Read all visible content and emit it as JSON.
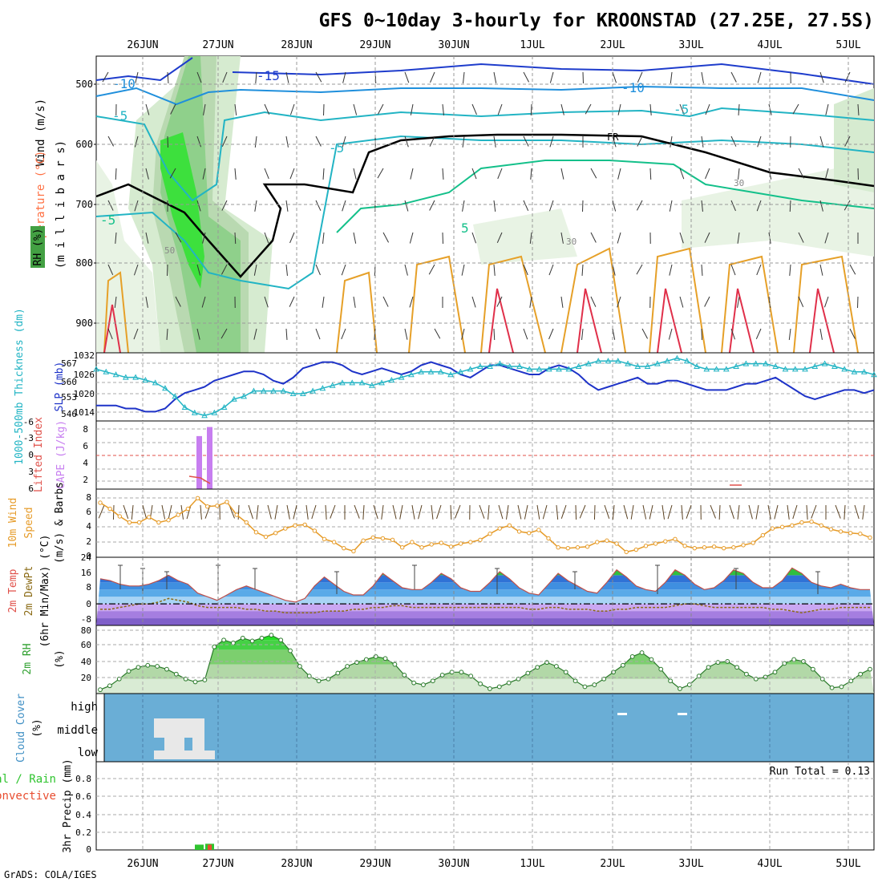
{
  "title": "GFS 0~10day 3-hourly for KROONSTAD (27.25E, 27.5S)",
  "footer": "GrADS: COLA/IGES",
  "dates": [
    "26JUN",
    "27JUN",
    "28JUN",
    "29JUN",
    "30JUN",
    "1JUL",
    "2JUL",
    "3JUL",
    "4JUL",
    "5JUL"
  ],
  "colors": {
    "sst_line": "#1e33c8",
    "thick_line": "#22b4c4",
    "cape_bar": "#c77ef0",
    "li_line": "#e0504a",
    "wind_line": "#e69b28",
    "rh_fill": "#43a043",
    "cloud_bg": "#6aaed6",
    "cloud_fill": "#e8e8e8",
    "precip_total": "#2fc42f",
    "precip_conv": "#e84d30",
    "temp_line": "#8a6a14"
  },
  "panels": {
    "upper_air": {
      "ylabel_wind": "Wind (m/s)",
      "ylabel_temp": "Temperature (°C)",
      "ylabel_rh": "RH (%)",
      "ylabel_mb": "(m i l l i b a r s)",
      "y_ticks": [
        "500",
        "600",
        "700",
        "800",
        "900"
      ],
      "contour_labels": [
        "-15",
        "-10",
        "-10",
        "-5",
        "-5",
        "-5",
        "-5",
        "5",
        "FR",
        "30",
        "30",
        "50"
      ]
    },
    "slp_thick": {
      "ylabel_thick": "1000-500mb Thickness (dm)",
      "ylabel_slp": "SLP (mb)",
      "left_ticks": [
        "567",
        "560",
        "553",
        "546"
      ],
      "right_ticks": [
        "1032",
        "1026",
        "1020",
        "1014"
      ]
    },
    "cape_li": {
      "ylabel_li": "Lifted Index",
      "ylabel_cape": "CAPE (J/kg)",
      "left_ticks": [
        "-6",
        "-3",
        "0",
        "3",
        "6"
      ],
      "right_ticks": [
        "8",
        "6",
        "4",
        "2"
      ]
    },
    "wind10m": {
      "ylabel1": "10m Wind",
      "ylabel2": "Speed",
      "ylabel3": "(m/s) & Barbs",
      "ticks": [
        "8",
        "6",
        "4",
        "2",
        "0"
      ]
    },
    "temp2m": {
      "ylabel1": "2m Temp",
      "ylabel2": "2m DewPt",
      "ylabel3": "(6hr Min/Max) (°C)",
      "ticks": [
        "24",
        "16",
        "8",
        "0",
        "-8"
      ]
    },
    "rh2m": {
      "ylabel1": "2m RH",
      "ylabel2": "(%)",
      "ticks": [
        "80",
        "60",
        "40",
        "20"
      ]
    },
    "cloud": {
      "ylabel1": "Cloud Cover",
      "ylabel2": "(%)",
      "levels": [
        "high",
        "middle",
        "low"
      ]
    },
    "precip": {
      "ylabel1": "tal / Rain",
      "ylabel2": "Convective",
      "ylabel3": "3hr Precip (mm)",
      "ticks": [
        "0.8",
        "0.6",
        "0.4",
        "0.2",
        "0"
      ],
      "run_total": "Run Total = 0.13"
    }
  },
  "chart_data": [
    {
      "type": "line",
      "title": "1000-500mb Thickness (dm) / SLP (mb)",
      "x": "3-hourly steps from 25JUN 12Z to 5JUL 06Z",
      "series": [
        {
          "name": "SLP (mb)",
          "values": [
            1016,
            1016,
            1016,
            1015,
            1015,
            1014,
            1014,
            1015,
            1018,
            1020,
            1021,
            1022,
            1024,
            1025,
            1026,
            1027,
            1027,
            1026,
            1024,
            1023,
            1025,
            1028,
            1029,
            1030,
            1030,
            1029,
            1027,
            1026,
            1027,
            1028,
            1027,
            1026,
            1027,
            1029,
            1030,
            1029,
            1028,
            1026,
            1025,
            1027,
            1029,
            1029,
            1028,
            1027,
            1026,
            1026,
            1028,
            1029,
            1028,
            1026,
            1023,
            1021,
            1022,
            1023,
            1024,
            1025,
            1023,
            1023,
            1024,
            1024,
            1023,
            1022,
            1021,
            1021,
            1021,
            1022,
            1023,
            1023,
            1024,
            1025,
            1023,
            1021,
            1019,
            1018,
            1019,
            1020,
            1021,
            1021,
            1020,
            1021
          ]
        },
        {
          "name": "1000-500mb Thickness (dm)",
          "values": [
            563,
            562,
            561,
            560,
            560,
            559,
            558,
            556,
            553,
            549,
            547,
            546,
            547,
            549,
            552,
            553,
            555,
            555,
            555,
            555,
            554,
            554,
            555,
            556,
            557,
            558,
            558,
            558,
            557,
            558,
            559,
            560,
            561,
            562,
            562,
            562,
            561,
            562,
            563,
            564,
            564,
            565,
            564,
            564,
            563,
            563,
            563,
            563,
            563,
            564,
            565,
            566,
            566,
            566,
            565,
            564,
            564,
            565,
            566,
            567,
            566,
            564,
            563,
            563,
            563,
            564,
            565,
            565,
            565,
            564,
            563,
            563,
            563,
            564,
            565,
            564,
            563,
            562,
            562,
            561
          ]
        }
      ],
      "ylim_left": [
        544,
        569
      ],
      "ylim_right": [
        1011,
        1033
      ]
    },
    {
      "type": "bar",
      "title": "CAPE (J/kg) / Lifted Index",
      "categories": [
        "26JUN 18Z",
        "26JUN 21Z"
      ],
      "series": [
        {
          "name": "CAPE (J/kg)",
          "values": [
            7,
            8.2
          ]
        },
        {
          "name": "Lifted Index",
          "values": [
            4.8,
            5.4
          ]
        }
      ],
      "ylim": [
        0,
        9
      ]
    },
    {
      "type": "line",
      "title": "10m Wind Speed (m/s)",
      "series": [
        {
          "name": "10m Wind Speed",
          "values": [
            7.2,
            6.4,
            5.4,
            4.6,
            4.6,
            5.3,
            4.6,
            4.9,
            5.6,
            6.4,
            7.8,
            6.7,
            6.8,
            7.3,
            5.6,
            4.6,
            3.3,
            2.7,
            3.2,
            3.8,
            4.2,
            4.3,
            3.5,
            2.4,
            2.0,
            1.2,
            0.8,
            2.2,
            2.6,
            2.5,
            2.3,
            1.3,
            2.0,
            1.3,
            1.7,
            1.9,
            1.4,
            1.8,
            2.0,
            2.3,
            3.1,
            3.8,
            4.2,
            3.4,
            3.2,
            3.6,
            2.5,
            1.3,
            1.2,
            1.3,
            1.4,
            2.0,
            2.2,
            1.8,
            0.7,
            1.0,
            1.5,
            1.8,
            2.1,
            2.4,
            1.5,
            1.2,
            1.3,
            1.4,
            1.2,
            1.3,
            1.6,
            1.9,
            2.9,
            3.8,
            4.0,
            4.2,
            4.6,
            4.7,
            4.2,
            3.7,
            3.4,
            3.2,
            3.1,
            2.6
          ]
        }
      ],
      "ylim": [
        0,
        9
      ]
    },
    {
      "type": "area",
      "title": "2m Temp / 2m DewPt (°C)",
      "series": [
        {
          "name": "2m Temp",
          "values": [
            14,
            13,
            11,
            10,
            10,
            11,
            13,
            16,
            13,
            11,
            6,
            4,
            2,
            5,
            8,
            10,
            8,
            6,
            4,
            2,
            1,
            3,
            10,
            15,
            11,
            7,
            5,
            5,
            10,
            17,
            13,
            9,
            8,
            8,
            12,
            17,
            14,
            9,
            7,
            7,
            12,
            18,
            14,
            9,
            6,
            5,
            11,
            17,
            13,
            10,
            7,
            6,
            12,
            19,
            15,
            10,
            8,
            7,
            12,
            19,
            16,
            11,
            8,
            9,
            13,
            19,
            17,
            12,
            9,
            9,
            13,
            20,
            17,
            12,
            10,
            9,
            11,
            9,
            8,
            8
          ]
        },
        {
          "name": "2m DewPt",
          "values": [
            -3,
            -3,
            -2,
            -1,
            0,
            0,
            1,
            3,
            2,
            1,
            -1,
            -2,
            -2,
            -2,
            -2,
            -3,
            -3,
            -4,
            -4,
            -5,
            -5,
            -5,
            -5,
            -4,
            -4,
            -4,
            -3,
            -3,
            -2,
            -2,
            -1,
            -1,
            -2,
            -2,
            -2,
            -2,
            -2,
            -2,
            -2,
            -2,
            -2,
            -2,
            -2,
            -2,
            -3,
            -3,
            -2,
            -2,
            -3,
            -3,
            -3,
            -4,
            -4,
            -3,
            -3,
            -2,
            -2,
            -2,
            -2,
            -1,
            0,
            0,
            -1,
            -2,
            -2,
            -2,
            -2,
            -2,
            -2,
            -3,
            -3,
            -4,
            -5,
            -4,
            -3,
            -3,
            -2,
            -2,
            -2,
            -2
          ]
        }
      ],
      "ylim": [
        -12,
        26
      ]
    },
    {
      "type": "area",
      "title": "2m RH (%)",
      "series": [
        {
          "name": "2m RH",
          "values": [
            19,
            23,
            30,
            38,
            42,
            44,
            43,
            40,
            35,
            30,
            27,
            29,
            63,
            70,
            67,
            72,
            69,
            72,
            75,
            70,
            59,
            43,
            33,
            28,
            30,
            36,
            43,
            47,
            50,
            53,
            51,
            45,
            34,
            26,
            24,
            28,
            34,
            37,
            37,
            33,
            25,
            20,
            22,
            26,
            30,
            36,
            42,
            47,
            43,
            37,
            28,
            22,
            24,
            30,
            37,
            44,
            53,
            57,
            50,
            40,
            28,
            20,
            24,
            33,
            42,
            47,
            48,
            42,
            35,
            30,
            32,
            37,
            46,
            50,
            48,
            40,
            30,
            21,
            22,
            28,
            35,
            40
          ]
        }
      ],
      "ylim": [
        15,
        85
      ]
    },
    {
      "type": "bar",
      "title": "3hr Precip (mm)",
      "categories": [
        "26JUN 18Z",
        "26JUN 21Z"
      ],
      "series": [
        {
          "name": "Total / Rain",
          "values": [
            0.06,
            0.07
          ]
        },
        {
          "name": "Convective",
          "values": [
            0.0,
            0.06
          ]
        }
      ],
      "ylim": [
        0,
        1
      ],
      "annotation": "Run Total = 0.13"
    }
  ]
}
